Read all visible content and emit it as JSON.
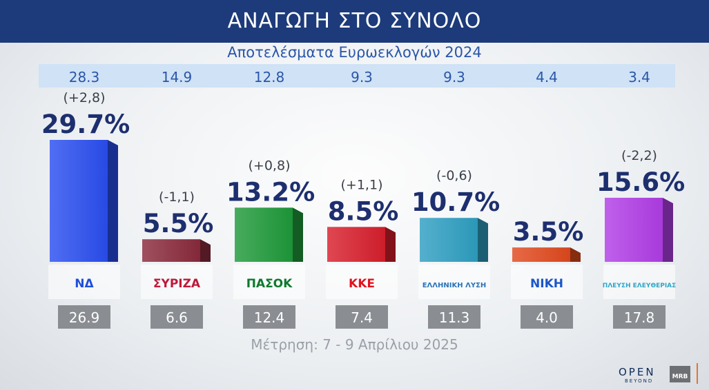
{
  "header": {
    "title": "ΑΝΑΓΩΓΗ ΣΤΟ ΣΥΝΟΛΟ"
  },
  "subtitle": "Αποτελέσματα Ευρωεκλογών 2024",
  "footer_note": "Μέτρηση: 7 - 9 Απρίλιου 2025",
  "brand": {
    "open": "OPEN",
    "beyond": "BEYOND",
    "mrb": "MRB"
  },
  "chart_data": {
    "type": "bar",
    "title": "ΑΝΑΓΩΓΗ ΣΤΟ ΣΥΝΟΛΟ",
    "subtitle": "Αποτελέσματα Ευρωεκλογών 2024",
    "categories": [
      "ΝΔ",
      "ΣΥΡΙΖΑ",
      "ΠΑΣΟΚ",
      "ΚΚΕ",
      "ΕΛΛΗΝΙΚΗ ΛΥΣΗ",
      "ΝΙΚΗ",
      "ΠΛΕΥΣΗ ΕΛΕΥΘΕΡΙΑΣ"
    ],
    "series": [
      {
        "name": "Μέτρηση",
        "values": [
          29.7,
          5.5,
          13.2,
          8.5,
          10.7,
          3.5,
          15.6
        ],
        "labels": [
          "29.7%",
          "5.5%",
          "13.2%",
          "8.5%",
          "10.7%",
          "3.5%",
          "15.6%"
        ]
      }
    ],
    "euro2024": [
      "28.3",
      "14.9",
      "12.8",
      "9.3",
      "9.3",
      "4.4",
      "3.4"
    ],
    "changes": [
      "(+2,8)",
      "(-1,1)",
      "(+0,8)",
      "(+1,1)",
      "(-0,6)",
      "",
      "(-2,2)"
    ],
    "bottom_values": [
      "26.9",
      "6.6",
      "12.4",
      "7.4",
      "11.3",
      "4.0",
      "17.8"
    ],
    "party_logos": [
      "ΝΔ",
      "ΣΥΡΙΖΑ",
      "ΠΑΣΟΚ",
      "ΚΚΕ",
      "ΕΛΛΗΝΙΚΗ ΛΥΣΗ",
      "ΝΙΚΗ",
      "ΠΛΕΥΣΗ ΕΛΕΥΘΕΡΙΑΣ"
    ],
    "colors": [
      "#2a4ef0",
      "#8a2a3c",
      "#1f9a3a",
      "#d81e2c",
      "#2e9fc2",
      "#e0491d",
      "#b13de6"
    ],
    "ylim": [
      0,
      30
    ],
    "grid": false,
    "legend": "none"
  }
}
